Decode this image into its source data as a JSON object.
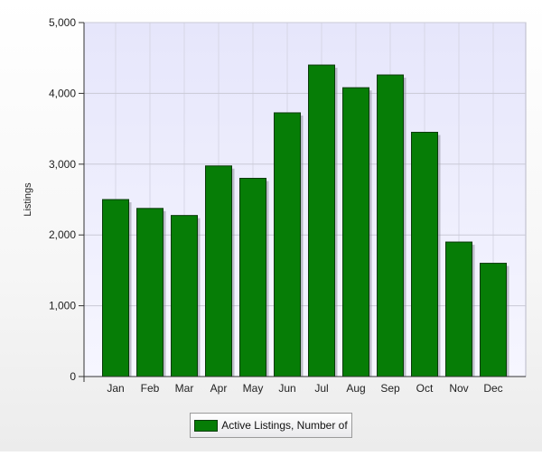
{
  "chart_data": {
    "type": "bar",
    "categories": [
      "Jan",
      "Feb",
      "Mar",
      "Apr",
      "May",
      "Jun",
      "Jul",
      "Aug",
      "Sep",
      "Oct",
      "Nov",
      "Dec"
    ],
    "series": [
      {
        "name": "Active Listings, Number of",
        "values": [
          2500,
          2375,
          2275,
          2975,
          2800,
          3725,
          4400,
          4080,
          4260,
          3450,
          1900,
          1600
        ],
        "color": "#067d06"
      }
    ],
    "title": "",
    "xlabel": "",
    "ylabel": "Listings",
    "ylim": [
      0,
      5000
    ],
    "yticks": [
      "0",
      "1,000",
      "2,000",
      "3,000",
      "4,000",
      "5,000"
    ],
    "ytick_values": [
      0,
      1000,
      2000,
      3000,
      4000,
      5000
    ],
    "grid": true,
    "legend_position": "bottom-center",
    "plot_background": "#eeeefc"
  }
}
